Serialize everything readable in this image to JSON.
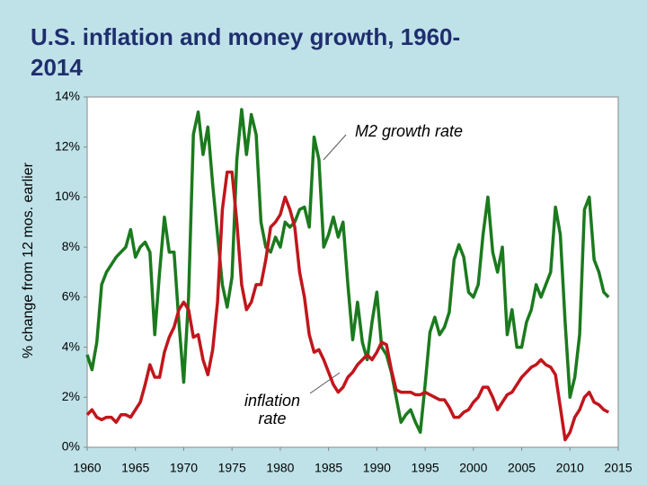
{
  "chart_data": {
    "type": "line",
    "title": "U.S. inflation and money growth, 1960-2014",
    "ylabel": "% change from 12 mos. earlier",
    "xlim": [
      1960,
      2015
    ],
    "xticks": [
      1960,
      1965,
      1970,
      1975,
      1980,
      1985,
      1990,
      1995,
      2000,
      2005,
      2010,
      2015
    ],
    "ylim": [
      0,
      14
    ],
    "yticks": [
      {
        "value": 0,
        "label": "0%"
      },
      {
        "value": 2,
        "label": "2%"
      },
      {
        "value": 4,
        "label": "4%"
      },
      {
        "value": 6,
        "label": "6%"
      },
      {
        "value": 8,
        "label": "8%"
      },
      {
        "value": 10,
        "label": "10%"
      },
      {
        "value": 12,
        "label": "12%"
      },
      {
        "value": 14,
        "label": "14%"
      }
    ],
    "grid": false,
    "x": [
      1960,
      1960.5,
      1961,
      1961.5,
      1962,
      1962.5,
      1963,
      1963.5,
      1964,
      1964.5,
      1965,
      1965.5,
      1966,
      1966.5,
      1967,
      1967.5,
      1968,
      1968.5,
      1969,
      1969.5,
      1970,
      1970.5,
      1971,
      1971.5,
      1972,
      1972.5,
      1973,
      1973.5,
      1974,
      1974.5,
      1975,
      1975.5,
      1976,
      1976.5,
      1977,
      1977.5,
      1978,
      1978.5,
      1979,
      1979.5,
      1980,
      1980.5,
      1981,
      1981.5,
      1982,
      1982.5,
      1983,
      1983.5,
      1984,
      1984.5,
      1985,
      1985.5,
      1986,
      1986.5,
      1987,
      1987.5,
      1988,
      1988.5,
      1989,
      1989.5,
      1990,
      1990.5,
      1991,
      1991.5,
      1992,
      1992.5,
      1993,
      1993.5,
      1994,
      1994.5,
      1995,
      1995.5,
      1996,
      1996.5,
      1997,
      1997.5,
      1998,
      1998.5,
      1999,
      1999.5,
      2000,
      2000.5,
      2001,
      2001.5,
      2002,
      2002.5,
      2003,
      2003.5,
      2004,
      2004.5,
      2005,
      2005.5,
      2006,
      2006.5,
      2007,
      2007.5,
      2008,
      2008.5,
      2009,
      2009.5,
      2010,
      2010.5,
      2011,
      2011.5,
      2012,
      2012.5,
      2013,
      2013.5,
      2014
    ],
    "series": [
      {
        "name": "M2 growth rate",
        "color": "#1b7a1e",
        "values": [
          3.7,
          3.1,
          4.2,
          6.5,
          7.0,
          7.3,
          7.6,
          7.8,
          8.0,
          8.7,
          7.6,
          8.0,
          8.2,
          7.8,
          4.5,
          7.0,
          9.2,
          7.8,
          7.8,
          5.0,
          2.6,
          6.0,
          12.5,
          13.4,
          11.7,
          12.8,
          10.5,
          8.5,
          6.5,
          5.6,
          6.8,
          11.5,
          13.5,
          11.7,
          13.3,
          12.5,
          9.0,
          8.0,
          7.8,
          8.4,
          8.0,
          9.0,
          8.8,
          9.0,
          9.5,
          9.6,
          8.8,
          12.4,
          11.5,
          8.0,
          8.5,
          9.2,
          8.4,
          9.0,
          6.5,
          4.3,
          5.8,
          4.2,
          3.5,
          5.0,
          6.2,
          4.0,
          3.7,
          3.0,
          2.0,
          1.0,
          1.3,
          1.5,
          1.0,
          0.6,
          2.5,
          4.6,
          5.2,
          4.5,
          4.8,
          5.4,
          7.5,
          8.1,
          7.6,
          6.2,
          6.0,
          6.5,
          8.5,
          10.0,
          7.8,
          7.0,
          8.0,
          4.5,
          5.5,
          4.0,
          4.0,
          5.0,
          5.5,
          6.5,
          6.0,
          6.5,
          7.0,
          9.6,
          8.5,
          5.0,
          2.0,
          2.8,
          4.5,
          9.5,
          10.0,
          7.5,
          7.0,
          6.2,
          6.0
        ]
      },
      {
        "name": "inflation rate",
        "color": "#c1161c",
        "values": [
          1.3,
          1.5,
          1.2,
          1.1,
          1.2,
          1.2,
          1.0,
          1.3,
          1.3,
          1.2,
          1.5,
          1.8,
          2.5,
          3.3,
          2.8,
          2.8,
          3.8,
          4.4,
          4.8,
          5.5,
          5.8,
          5.5,
          4.4,
          4.5,
          3.5,
          2.9,
          3.9,
          5.8,
          9.5,
          11.0,
          11.0,
          9.0,
          6.5,
          5.5,
          5.8,
          6.5,
          6.5,
          7.5,
          8.8,
          9.0,
          9.3,
          10.0,
          9.5,
          8.8,
          7.0,
          6.0,
          4.5,
          3.8,
          3.9,
          3.5,
          3.0,
          2.5,
          2.2,
          2.4,
          2.8,
          3.0,
          3.3,
          3.5,
          3.7,
          3.5,
          3.8,
          4.2,
          4.1,
          3.1,
          2.3,
          2.2,
          2.2,
          2.2,
          2.1,
          2.1,
          2.2,
          2.1,
          2.0,
          1.9,
          1.9,
          1.6,
          1.2,
          1.2,
          1.4,
          1.5,
          1.8,
          2.0,
          2.4,
          2.4,
          2.0,
          1.5,
          1.8,
          2.1,
          2.2,
          2.5,
          2.8,
          3.0,
          3.2,
          3.3,
          3.5,
          3.3,
          3.2,
          2.9,
          1.6,
          0.3,
          0.6,
          1.2,
          1.5,
          2.0,
          2.2,
          1.8,
          1.7,
          1.5,
          1.4
        ]
      }
    ]
  }
}
